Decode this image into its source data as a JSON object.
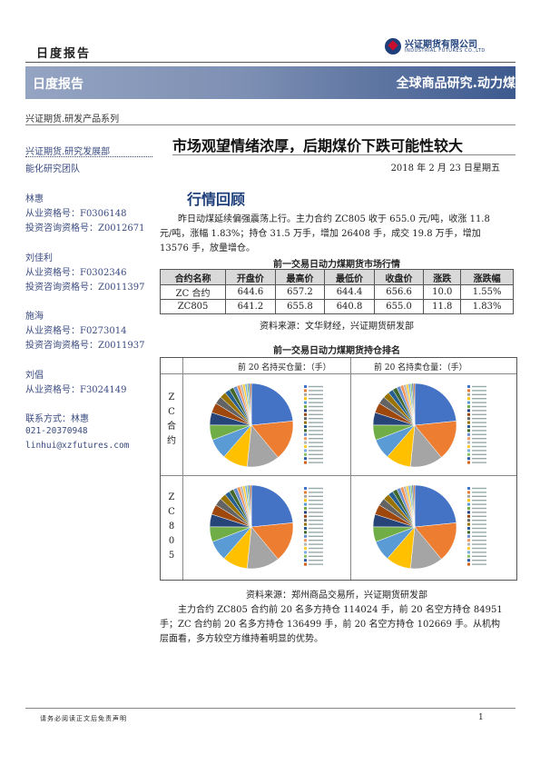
{
  "header": {
    "report_type": "日度报告",
    "logo_cn": "兴证期货有限公司",
    "logo_en": "INDUSTRIAL FUTURES CO.,LTD",
    "banner_left": "日度报告",
    "banner_right": "全球商品研究.动力煤",
    "series": "兴证期货.研发产品系列"
  },
  "sidebar": {
    "department": "兴证期货.研究发展部",
    "team": "能化研究团队",
    "analysts": [
      {
        "name": "林惠",
        "cert": "从业资格号：F0306148",
        "advisor": "投资咨询资格号：Z0012671"
      },
      {
        "name": "刘佳利",
        "cert": "从业资格号：F0302346",
        "advisor": "投资咨询资格号：Z0011397"
      },
      {
        "name": "施海",
        "cert": "从业资格号：F0273014",
        "advisor": "投资咨询资格号：Z0011937"
      },
      {
        "name": "刘倡",
        "cert": "从业资格号：F3024149"
      }
    ],
    "contact_label": "联系方式：林惠",
    "phone": "021-20370948",
    "email": "linhui@xzfutures.com"
  },
  "main": {
    "title": "市场观望情绪浓厚，后期煤价下跌可能性较大",
    "date": "2018 年 2 月 23 日星期五",
    "section": "行情回顾",
    "para1": "昨日动煤延续偏强震荡上行。主力合约 ZC805 收于 655.0 元/吨，收涨 11.8 元/吨，涨幅 1.83%；持仓 31.5 万手，增加 26408 手，成交 19.8 万手，增加 13576 手，放量增仓。",
    "table_caption": "前一交易日动力煤期货市场行情",
    "table_headers": [
      "合约名称",
      "开盘价",
      "最高价",
      "最低价",
      "收盘价",
      "涨跌",
      "涨跌幅"
    ],
    "table_rows": [
      [
        "ZC 合约",
        "644.6",
        "657.2",
        "644.4",
        "656.6",
        "10.0",
        "1.55%"
      ],
      [
        "ZC805",
        "641.2",
        "655.8",
        "640.8",
        "655.0",
        "11.8",
        "1.83%"
      ]
    ],
    "table_source": "资料来源：文华财经，兴证期货研发部",
    "pie_caption": "前一交易日动力煤期货持仓排名",
    "pie_head_long": "前 20 名持买仓量：（手）",
    "pie_head_short": "前 20 名持卖仓量：（手）",
    "row_label_1": "ZC合约",
    "row_label_2": "ZC805",
    "pie_source": "资料来源：郑州商品交易所，兴证期货研发部",
    "para2": "主力合约 ZC805 合约前 20 名多方持仓 114024 手，前 20 名空方持仓 84951 手；ZC 合约前 20 名多方持仓 136499 手，前 20 名空方持仓 102669 手。从机构层面看，多方较空方维持着明显的优势。"
  },
  "footer": {
    "disclaimer": "请务必阅读正文后免责声明",
    "page": "1"
  },
  "colors": {
    "navy": "#1e3f7a",
    "banner_light": "#95a4c2",
    "banner_dark": "#3d5a8f",
    "table_header": "#d9d9d9"
  }
}
